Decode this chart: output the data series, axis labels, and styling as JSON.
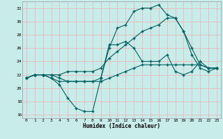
{
  "xlabel": "Humidex (Indice chaleur)",
  "bg_color": "#c8ece9",
  "grid_color": "#e8b8b8",
  "line_color": "#006060",
  "xlim": [
    -0.5,
    23.5
  ],
  "ylim": [
    15.5,
    33.0
  ],
  "xticks": [
    0,
    1,
    2,
    3,
    4,
    5,
    6,
    7,
    8,
    9,
    10,
    11,
    12,
    13,
    14,
    15,
    16,
    17,
    18,
    19,
    20,
    21,
    22,
    23
  ],
  "yticks": [
    16,
    18,
    20,
    22,
    24,
    26,
    28,
    30,
    32
  ],
  "curve1_x": [
    0,
    1,
    2,
    3,
    4,
    5,
    6,
    7,
    8,
    9,
    10,
    11,
    12,
    13,
    14,
    15,
    16,
    17,
    18,
    19,
    20,
    21,
    22,
    23
  ],
  "curve1_y": [
    21.5,
    22.0,
    22.0,
    21.5,
    20.5,
    18.5,
    17.0,
    16.5,
    16.5,
    21.5,
    26.5,
    26.5,
    27.0,
    26.0,
    24.0,
    24.0,
    24.0,
    25.0,
    22.5,
    22.0,
    22.5,
    24.0,
    23.0,
    23.0
  ],
  "curve2_x": [
    0,
    1,
    2,
    3,
    4,
    5,
    6,
    7,
    8,
    9,
    10,
    11,
    12,
    13,
    14,
    15,
    16,
    17,
    18,
    19,
    20,
    21,
    22,
    23
  ],
  "curve2_y": [
    21.5,
    22.0,
    22.0,
    22.0,
    22.0,
    22.5,
    22.5,
    22.5,
    22.5,
    23.0,
    24.5,
    25.5,
    26.5,
    27.5,
    28.5,
    29.0,
    29.5,
    30.5,
    30.5,
    28.5,
    25.0,
    23.0,
    22.5,
    23.0
  ],
  "curve3_x": [
    0,
    1,
    2,
    3,
    4,
    5,
    6,
    7,
    8,
    9,
    10,
    11,
    12,
    13,
    14,
    15,
    16,
    17,
    18,
    19,
    20,
    21,
    22,
    23
  ],
  "curve3_y": [
    21.5,
    22.0,
    22.0,
    21.5,
    21.0,
    21.0,
    21.0,
    21.0,
    21.0,
    21.0,
    21.5,
    22.0,
    22.5,
    23.0,
    23.5,
    23.5,
    23.5,
    23.5,
    23.5,
    23.5,
    23.5,
    23.5,
    23.0,
    23.0
  ],
  "curve4_x": [
    0,
    1,
    2,
    3,
    4,
    5,
    6,
    7,
    8,
    9,
    10,
    11,
    12,
    13,
    14,
    15,
    16,
    17,
    18,
    19,
    20,
    21,
    22,
    23
  ],
  "curve4_y": [
    21.5,
    22.0,
    22.0,
    22.0,
    21.5,
    21.0,
    21.0,
    21.0,
    21.0,
    21.5,
    26.0,
    29.0,
    29.5,
    31.5,
    32.0,
    32.0,
    32.5,
    31.0,
    30.5,
    28.5,
    26.0,
    23.5,
    23.0,
    23.0
  ]
}
